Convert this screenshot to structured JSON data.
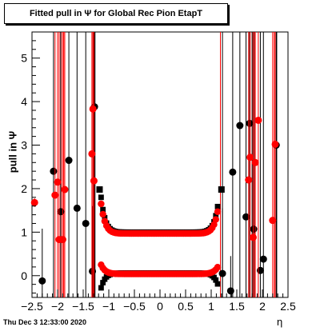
{
  "footer_timestamp": "Thu Dec  3 12:33:00 2020",
  "chart_data": {
    "type": "scatter",
    "title": "Fitted pull in  Ψ  for Global Rec Pion EtapT",
    "xlabel": "η",
    "ylabel": "pull in  Ψ",
    "xlim": [
      -2.5,
      2.5
    ],
    "ylim": [
      -0.5,
      5.6
    ],
    "x_ticks": [
      -2.5,
      -2,
      -1.5,
      -1,
      -0.5,
      0,
      0.5,
      1,
      1.5,
      2,
      2.5
    ],
    "x_tick_labels": [
      "−2.5",
      "−2",
      "−1.5",
      "−1",
      "−0.5",
      "0",
      "0.5",
      "1",
      "1.5",
      "2",
      "2.5"
    ],
    "y_ticks": [
      0,
      1,
      2,
      3,
      4,
      5
    ],
    "y_tick_labels": [
      "0",
      "1",
      "2",
      "3",
      "4",
      "5"
    ],
    "series": [
      {
        "color": "#000000",
        "marker": "circle",
        "points": [
          {
            "x": -2.3,
            "y": -0.12,
            "err": 1.2
          },
          {
            "x": -2.08,
            "y": 2.4,
            "err": 6
          },
          {
            "x": -1.94,
            "y": 1.47,
            "err": 6
          },
          {
            "x": -1.78,
            "y": 2.65,
            "err": 6
          },
          {
            "x": -1.62,
            "y": 1.55,
            "err": 6
          },
          {
            "x": -1.45,
            "y": 1.2,
            "err": 6
          },
          {
            "x": -1.28,
            "y": 3.88,
            "err": 6
          },
          {
            "x": -1.32,
            "y": 0.1,
            "err": 1.5
          },
          {
            "x": 1.22,
            "y": 0.05,
            "err": 1.5
          },
          {
            "x": 1.38,
            "y": -0.35,
            "err": 0.8
          },
          {
            "x": 1.42,
            "y": 2.38,
            "err": 6
          },
          {
            "x": 1.56,
            "y": 3.45,
            "err": 6
          },
          {
            "x": 1.68,
            "y": 1.35,
            "err": 6
          },
          {
            "x": 1.75,
            "y": 3.5,
            "err": 6
          },
          {
            "x": 1.83,
            "y": 1.07,
            "err": 6
          },
          {
            "x": 1.96,
            "y": 0.12,
            "err": 6
          },
          {
            "x": 2.02,
            "y": 0.38,
            "err": 6
          },
          {
            "x": 2.27,
            "y": 3.0,
            "err": 6
          }
        ]
      },
      {
        "color": "#000000",
        "marker": "square",
        "points": [
          {
            "x": -1.18,
            "y": 1.98,
            "err": 0
          },
          {
            "x": 1.2,
            "y": 1.98,
            "err": 0
          }
        ]
      },
      {
        "color": "#ff0000",
        "marker": "circle",
        "points": [
          {
            "x": -2.45,
            "y": 1.68,
            "err": 0.1
          },
          {
            "x": -2.05,
            "y": 1.85,
            "err": 6
          },
          {
            "x": -2.0,
            "y": 2.15,
            "err": 6
          },
          {
            "x": -1.97,
            "y": 0.83,
            "err": 6
          },
          {
            "x": -1.9,
            "y": 0.83,
            "err": 6
          },
          {
            "x": -1.86,
            "y": 1.98,
            "err": 6
          },
          {
            "x": -1.33,
            "y": 2.8,
            "err": 6
          },
          {
            "x": -1.31,
            "y": 3.83,
            "err": 6
          },
          {
            "x": -1.29,
            "y": 2.18,
            "err": 6
          },
          {
            "x": 1.73,
            "y": 2.2,
            "err": 6
          },
          {
            "x": 1.76,
            "y": 2.72,
            "err": 6
          },
          {
            "x": 1.82,
            "y": 0.88,
            "err": 6
          },
          {
            "x": 1.86,
            "y": 2.6,
            "err": 6
          },
          {
            "x": 1.92,
            "y": 3.57,
            "err": 6
          },
          {
            "x": 2.2,
            "y": 1.27,
            "err": 6
          },
          {
            "x": 2.25,
            "y": 3.02,
            "err": 6
          }
        ]
      }
    ],
    "profile_red": {
      "x_start": -1.15,
      "x_end": 1.15,
      "step": 0.035,
      "upper": {
        "plateau": 0.97,
        "edge": 1.65
      },
      "lower": {
        "plateau": 0.04,
        "edge": 0.25
      }
    },
    "profile_black": {
      "x_start": -1.15,
      "x_end": 1.15,
      "step": 0.035,
      "upper": {
        "plateau": 1.0,
        "edge": 1.8
      },
      "lower": {
        "plateau": 0.06,
        "edge": -0.28
      }
    },
    "red_vertical_lines_x": [
      -1.93,
      -1.88,
      -1.28,
      1.18,
      1.8,
      1.85,
      2.23
    ],
    "black_vertical_lines_x": [
      -1.3,
      -1.27,
      1.22,
      1.8,
      2.28
    ]
  }
}
